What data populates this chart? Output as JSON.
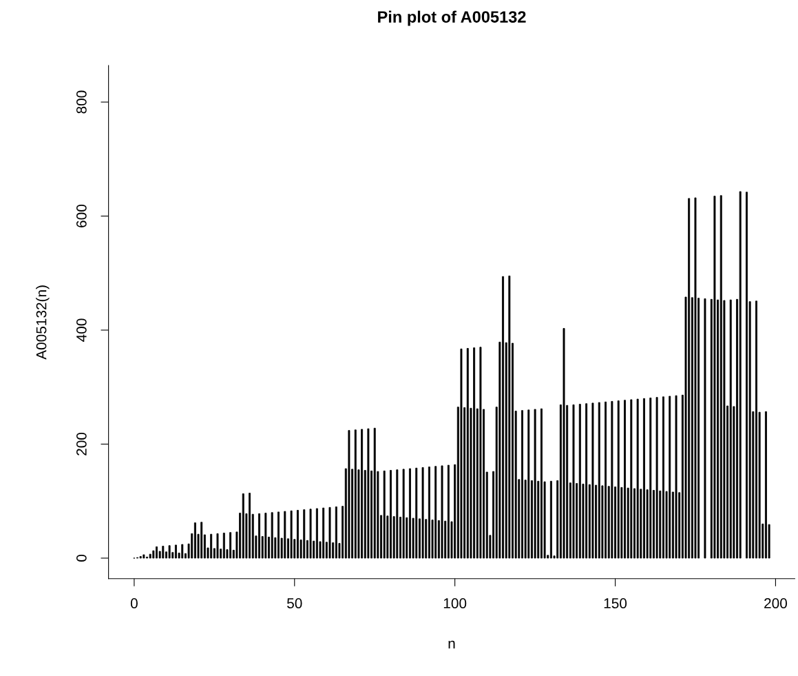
{
  "chart_data": {
    "type": "bar",
    "title": "Pin plot of A005132",
    "xlabel": "n",
    "ylabel": "A005132(n)",
    "x": [
      0,
      1,
      2,
      3,
      4,
      5,
      6,
      7,
      8,
      9,
      10,
      11,
      12,
      13,
      14,
      15,
      16,
      17,
      18,
      19,
      20,
      21,
      22,
      23,
      24,
      25,
      26,
      27,
      28,
      29,
      30,
      31,
      32,
      33,
      34,
      35,
      36,
      37,
      38,
      39,
      40,
      41,
      42,
      43,
      44,
      45,
      46,
      47,
      48,
      49,
      50,
      51,
      52,
      53,
      54,
      55,
      56,
      57,
      58,
      59,
      60,
      61,
      62,
      63,
      64,
      65,
      66,
      67,
      68,
      69,
      70,
      71,
      72,
      73,
      74,
      75,
      76,
      77,
      78,
      79,
      80,
      81,
      82,
      83,
      84,
      85,
      86,
      87,
      88,
      89,
      90,
      91,
      92,
      93,
      94,
      95,
      96,
      97,
      98,
      99,
      100,
      101,
      102,
      103,
      104,
      105,
      106,
      107,
      108,
      109,
      110,
      111,
      112,
      113,
      114,
      115,
      116,
      117,
      118,
      119,
      120,
      121,
      122,
      123,
      124,
      125,
      126,
      127,
      128,
      129,
      130,
      131,
      132,
      133,
      134,
      135,
      136,
      137,
      138,
      139,
      140,
      141,
      142,
      143,
      144,
      145,
      146,
      147,
      148,
      149,
      150,
      151,
      152,
      153,
      154,
      155,
      156,
      157,
      158,
      159,
      160,
      161,
      162,
      163,
      164,
      165,
      166,
      167,
      168,
      169,
      170,
      171,
      172,
      173,
      174,
      175,
      176,
      177,
      178,
      179,
      180,
      181,
      182,
      183,
      184,
      185,
      186,
      187,
      188,
      189,
      190,
      191,
      192,
      193,
      194,
      195,
      196,
      197,
      198
    ],
    "values": [
      0,
      1,
      3,
      6,
      2,
      7,
      13,
      20,
      12,
      21,
      11,
      22,
      10,
      23,
      9,
      24,
      8,
      25,
      43,
      62,
      42,
      63,
      41,
      18,
      42,
      17,
      43,
      16,
      44,
      15,
      45,
      14,
      46,
      79,
      113,
      78,
      114,
      77,
      39,
      78,
      38,
      79,
      37,
      80,
      36,
      81,
      35,
      82,
      34,
      83,
      33,
      84,
      32,
      85,
      31,
      86,
      30,
      87,
      29,
      88,
      28,
      89,
      27,
      90,
      26,
      91,
      157,
      224,
      156,
      225,
      155,
      226,
      154,
      227,
      153,
      228,
      152,
      75,
      153,
      74,
      154,
      73,
      155,
      72,
      156,
      71,
      157,
      70,
      158,
      69,
      159,
      68,
      160,
      67,
      161,
      66,
      162,
      65,
      163,
      64,
      164,
      265,
      367,
      264,
      368,
      263,
      369,
      262,
      370,
      261,
      151,
      40,
      152,
      265,
      379,
      494,
      378,
      495,
      377,
      258,
      138,
      259,
      137,
      260,
      136,
      261,
      135,
      262,
      134,
      5,
      135,
      4,
      136,
      269,
      403,
      268,
      132,
      269,
      131,
      270,
      130,
      271,
      129,
      272,
      128,
      273,
      127,
      274,
      126,
      275,
      125,
      276,
      124,
      277,
      123,
      278,
      122,
      279,
      121,
      280,
      120,
      281,
      119,
      282,
      118,
      283,
      117,
      284,
      116,
      285,
      115,
      286,
      458,
      631,
      457,
      632,
      456,
      null,
      455,
      null,
      454,
      635,
      453,
      636,
      452,
      267,
      453,
      266,
      454,
      643,
      null,
      642,
      450,
      257,
      451,
      256,
      60,
      257,
      59
    ],
    "color": "#000000",
    "xlim": [
      -8,
      206
    ],
    "ylim": [
      -36,
      864
    ],
    "xticks": [
      0,
      50,
      100,
      150,
      200
    ],
    "yticks": [
      0,
      200,
      400,
      600,
      800
    ],
    "grid": false
  }
}
